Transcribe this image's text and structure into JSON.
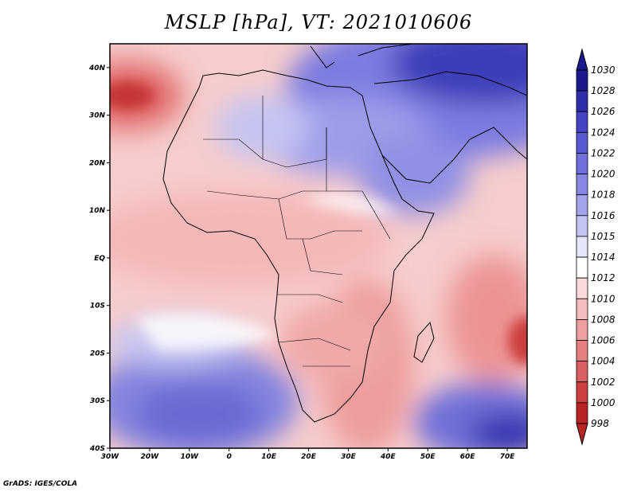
{
  "title": "MSLP [hPa], VT: 2021010606",
  "credit": "GrADS: IGES/COLA",
  "map": {
    "lon_range": [
      -30,
      75
    ],
    "lat_range": [
      -40,
      45
    ],
    "lon_ticks": [
      "30W",
      "20W",
      "10W",
      "0",
      "10E",
      "20E",
      "30E",
      "40E",
      "50E",
      "60E",
      "70E"
    ],
    "lat_ticks": [
      "40N",
      "30N",
      "20N",
      "10N",
      "EQ",
      "10S",
      "20S",
      "30S",
      "40S"
    ]
  },
  "colorbar": {
    "levels": [
      "1030",
      "1028",
      "1026",
      "1024",
      "1022",
      "1020",
      "1018",
      "1016",
      "1015",
      "1014",
      "1012",
      "1010",
      "1008",
      "1006",
      "1004",
      "1002",
      "1000",
      "998"
    ],
    "colors": [
      "#1a1a8c",
      "#2e2eaa",
      "#4444c4",
      "#5a5ad0",
      "#7070dc",
      "#8888e4",
      "#a4a4ec",
      "#c4c4f4",
      "#e6e6fa",
      "#ffffff",
      "#fadada",
      "#f4bcbc",
      "#eea0a0",
      "#e48080",
      "#d86060",
      "#cc4040",
      "#b82424"
    ]
  }
}
